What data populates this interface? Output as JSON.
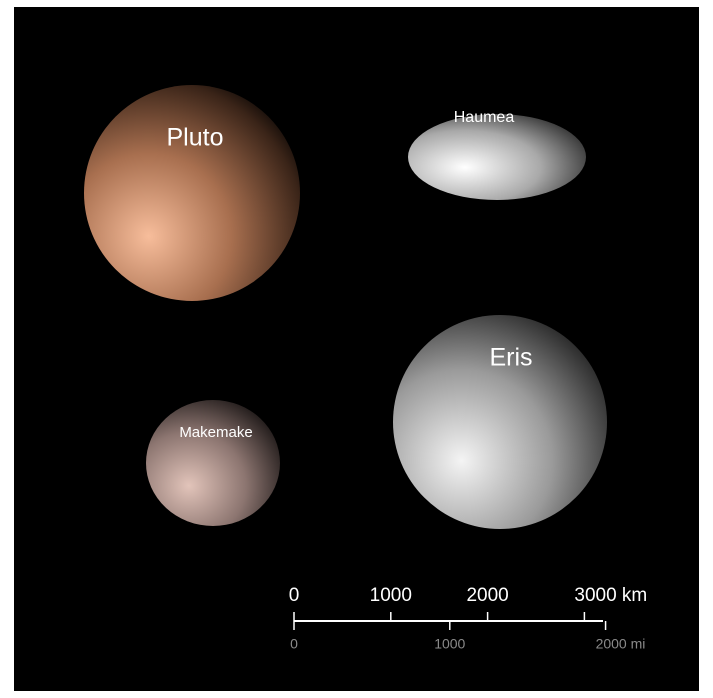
{
  "planets": [
    {
      "label": "Pluto"
    },
    {
      "label": "Haumea"
    },
    {
      "label": "Eris"
    },
    {
      "label": "Makemake"
    }
  ],
  "scale": {
    "km_ticks": [
      0,
      1000,
      2000,
      {
        "value": 3000,
        "label": "3000 km"
      }
    ],
    "mi_ticks": [
      0,
      1000,
      {
        "value": 2000,
        "label": "2000 mi"
      }
    ]
  }
}
